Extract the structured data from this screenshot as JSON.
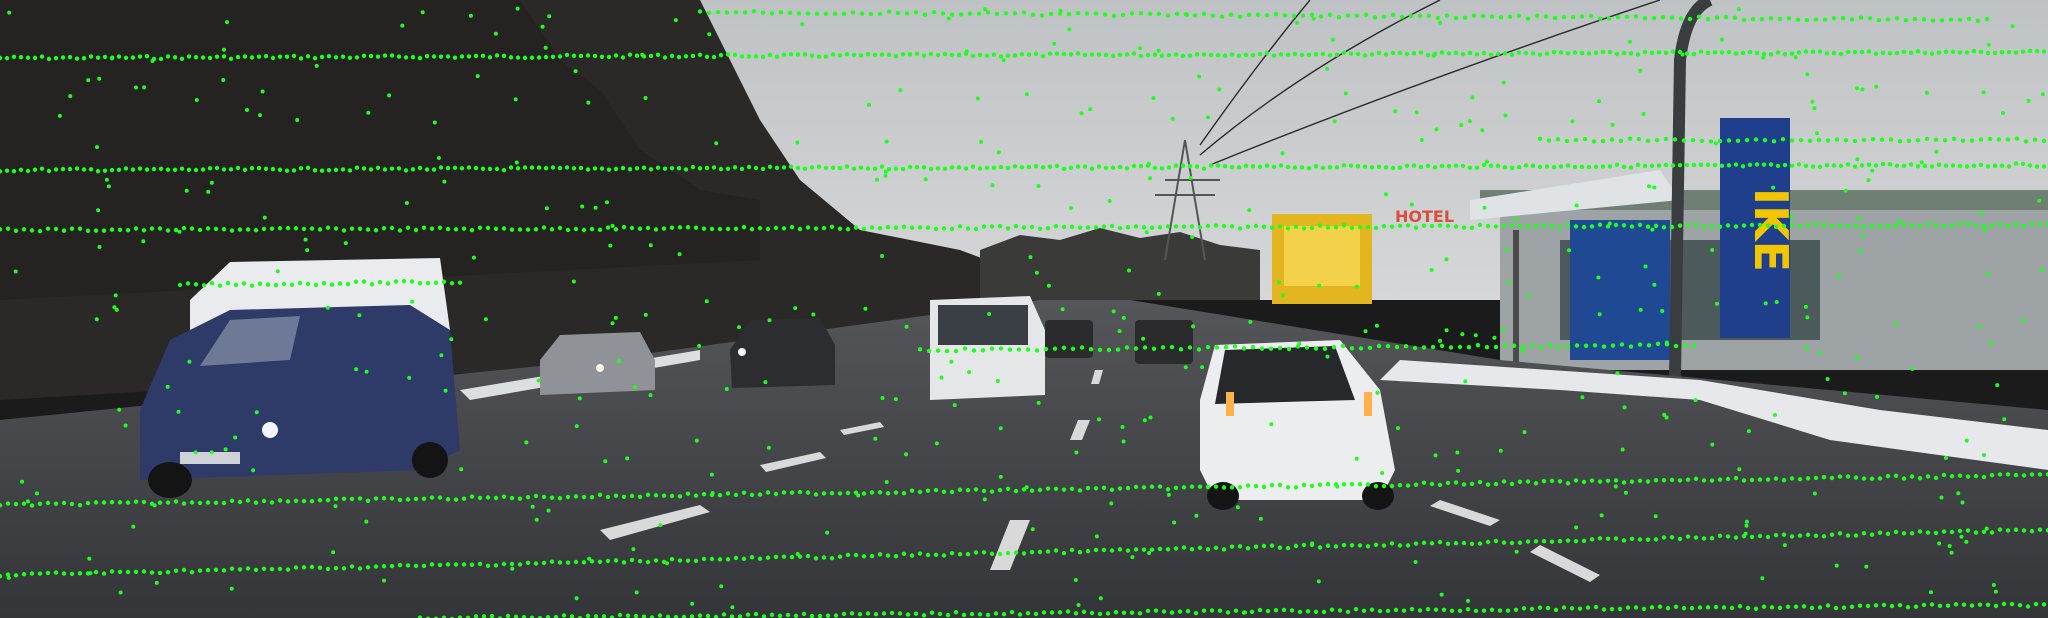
{
  "image": {
    "kind": "street-camera-frame-with-lidar-projection",
    "point_color": "#1eff1e"
  },
  "signs": {
    "hotel": "HOTEL",
    "brand_letters": "IKE"
  },
  "colors": {
    "sky": "#c9cbcd",
    "road": "#3e3f42",
    "trees": "#2c2a29",
    "snow": "#e6e8ec",
    "ikea_blue": "#1f3f8c",
    "ikea_yellow": "#f1c500"
  }
}
